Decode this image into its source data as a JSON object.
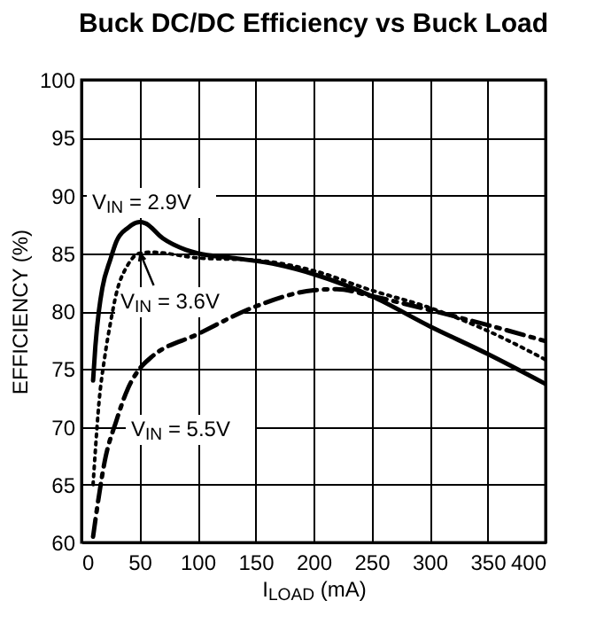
{
  "chart_data": {
    "type": "line",
    "title": "Buck DC/DC Efficiency vs Buck Load",
    "xlabel": "I$_{LOAD}$ (mA)",
    "ylabel": "EFFICIENCY (%)",
    "xlim": [
      0,
      400
    ],
    "xticks": [
      0,
      50,
      100,
      150,
      200,
      250,
      300,
      350,
      400
    ],
    "ylim": [
      60,
      100
    ],
    "yticks": [
      60,
      65,
      70,
      75,
      80,
      85,
      90,
      95,
      100
    ],
    "grid": true,
    "series": [
      {
        "name": "V$_{IN}$ = 2.9V",
        "color": "#000000",
        "line_style": "solid",
        "x": [
          10,
          12,
          15,
          18,
          25,
          30,
          40,
          50,
          55,
          70,
          90,
          100,
          130,
          170,
          200,
          250,
          300,
          350,
          400
        ],
        "values": [
          74,
          77,
          80,
          82,
          84.5,
          86,
          87.2,
          87.7,
          87.6,
          86.3,
          85.3,
          85,
          84.6,
          84,
          83.2,
          81.3,
          78.7,
          76.3,
          73.7
        ]
      },
      {
        "name": "V$_{IN}$ = 3.6V",
        "color": "#000000",
        "line_style": "dotted",
        "x": [
          10,
          12,
          15,
          20,
          25,
          30,
          40,
          50,
          60,
          100,
          150,
          200,
          250,
          300,
          350,
          400
        ],
        "values": [
          65,
          68,
          72,
          76,
          79,
          81.5,
          84,
          85,
          85.1,
          84.6,
          84.4,
          83.5,
          81.8,
          80.3,
          78.3,
          75.8
        ]
      },
      {
        "name": "V$_{IN}$ = 5.5V",
        "color": "#000000",
        "line_style": "dashed",
        "x": [
          10,
          15,
          20,
          30,
          40,
          50,
          60,
          100,
          150,
          200,
          220,
          250,
          300,
          350,
          400
        ],
        "values": [
          60.5,
          64,
          67,
          70.5,
          73.3,
          75,
          76,
          78,
          80.4,
          81.8,
          81.9,
          81.3,
          80.1,
          78.8,
          77.4
        ]
      }
    ]
  }
}
